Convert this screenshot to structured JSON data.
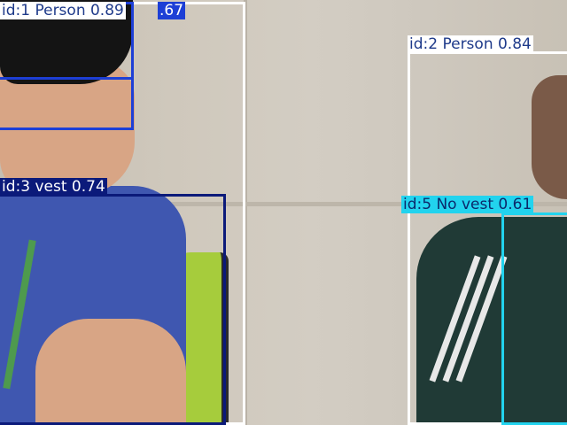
{
  "detections": [
    {
      "id_label": "id:1 Person 0.89",
      "color": "#ffffff",
      "text_color": "#1e3a8a"
    },
    {
      "id_label": "id:2 Person 0.84",
      "color": "#ffffff",
      "text_color": "#1e3a8a"
    },
    {
      "id_label": "id:3 vest 0.74",
      "color": "#0b1a7a",
      "text_color": "#ffffff"
    },
    {
      "id_label": "id:5 No vest 0.61",
      "color": "#22d3ee",
      "text_color": "#0b2a6b"
    },
    {
      "id_label": ".67",
      "color": "#1d3fd6",
      "text_color": "#ffffff"
    }
  ]
}
